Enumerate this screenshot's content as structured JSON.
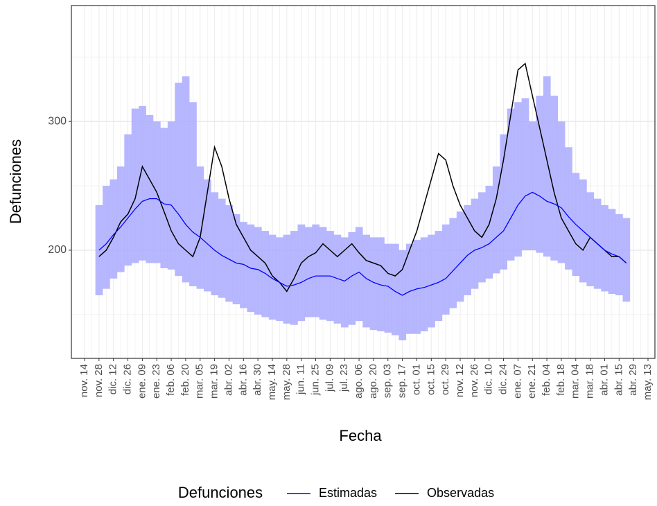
{
  "chart_data": {
    "type": "line",
    "x_label": "Fecha",
    "y_label": "Defunciones",
    "legend_title": "Defunciones",
    "categories": [
      "nov. 14",
      null,
      "nov. 28",
      null,
      "dic. 12",
      null,
      "dic. 26",
      null,
      "ene. 09",
      null,
      "ene. 23",
      null,
      "feb. 06",
      null,
      "feb. 20",
      null,
      "mar. 05",
      null,
      "mar. 19",
      null,
      "abr. 02",
      null,
      "abr. 16",
      null,
      "abr. 30",
      null,
      "may. 14",
      null,
      "may. 28",
      null,
      "jun. 11",
      null,
      "jun. 25",
      null,
      "jul. 09",
      null,
      "jul. 23",
      null,
      "ago. 06",
      null,
      "ago. 20",
      null,
      "sep. 03",
      null,
      "sep. 17",
      null,
      "oct. 01",
      null,
      "oct. 15",
      null,
      "oct. 29",
      null,
      "nov. 12",
      null,
      "nov. 26",
      null,
      "dic. 10",
      null,
      "dic. 24",
      null,
      "ene. 07",
      null,
      "ene. 21",
      null,
      "feb. 04",
      null,
      "feb. 18",
      null,
      "mar. 04",
      null,
      "mar. 18",
      null,
      "abr. 01",
      null,
      "abr. 15",
      null,
      "abr. 29",
      null,
      "may. 13"
    ],
    "band": {
      "color": "#aaaaff",
      "lower": [
        null,
        null,
        165,
        170,
        178,
        183,
        188,
        190,
        192,
        190,
        190,
        186,
        185,
        180,
        175,
        172,
        170,
        168,
        165,
        163,
        160,
        158,
        155,
        152,
        150,
        148,
        146,
        145,
        143,
        142,
        145,
        148,
        148,
        146,
        145,
        143,
        140,
        142,
        145,
        140,
        138,
        137,
        136,
        134,
        130,
        135,
        135,
        137,
        140,
        145,
        150,
        155,
        160,
        165,
        170,
        175,
        178,
        182,
        185,
        192,
        195,
        200,
        200,
        198,
        195,
        192,
        190,
        185,
        180,
        175,
        172,
        170,
        168,
        166,
        165,
        160,
        null,
        null,
        null
      ],
      "upper": [
        null,
        null,
        235,
        250,
        255,
        265,
        290,
        310,
        312,
        305,
        300,
        295,
        300,
        330,
        335,
        315,
        265,
        255,
        245,
        240,
        235,
        228,
        222,
        220,
        218,
        215,
        212,
        210,
        212,
        215,
        220,
        218,
        220,
        218,
        215,
        212,
        210,
        214,
        218,
        212,
        210,
        210,
        205,
        205,
        200,
        205,
        208,
        210,
        212,
        215,
        220,
        225,
        230,
        235,
        240,
        245,
        250,
        265,
        290,
        310,
        315,
        318,
        300,
        320,
        335,
        320,
        300,
        280,
        260,
        255,
        245,
        240,
        235,
        232,
        228,
        225,
        null,
        null,
        null
      ]
    },
    "series": [
      {
        "name": "Estimadas",
        "color": "#0000ff",
        "values": [
          null,
          null,
          200,
          205,
          212,
          218,
          225,
          232,
          238,
          240,
          240,
          236,
          235,
          228,
          220,
          214,
          210,
          205,
          200,
          196,
          193,
          190,
          189,
          186,
          185,
          182,
          178,
          175,
          172,
          173,
          175,
          178,
          180,
          180,
          180,
          178,
          176,
          180,
          183,
          178,
          175,
          173,
          172,
          168,
          165,
          168,
          170,
          171,
          173,
          175,
          178,
          184,
          190,
          196,
          200,
          202,
          205,
          210,
          215,
          225,
          235,
          242,
          245,
          242,
          238,
          236,
          233,
          226,
          220,
          215,
          210,
          205,
          200,
          197,
          195,
          190,
          null,
          null,
          null
        ]
      },
      {
        "name": "Observadas",
        "color": "#000000",
        "values": [
          null,
          null,
          195,
          200,
          210,
          222,
          228,
          240,
          265,
          255,
          245,
          230,
          215,
          205,
          200,
          195,
          210,
          245,
          280,
          265,
          240,
          220,
          210,
          200,
          195,
          190,
          180,
          175,
          168,
          178,
          190,
          195,
          198,
          205,
          200,
          195,
          200,
          205,
          198,
          192,
          190,
          188,
          182,
          180,
          185,
          200,
          215,
          235,
          255,
          275,
          270,
          250,
          235,
          225,
          215,
          210,
          220,
          240,
          270,
          305,
          340,
          345,
          320,
          295,
          270,
          245,
          225,
          215,
          205,
          200,
          210,
          205,
          200,
          195,
          195,
          190,
          null,
          null,
          null
        ]
      }
    ],
    "ylim": [
      116,
      390
    ],
    "yticks": [
      200,
      300
    ],
    "grid": true
  }
}
